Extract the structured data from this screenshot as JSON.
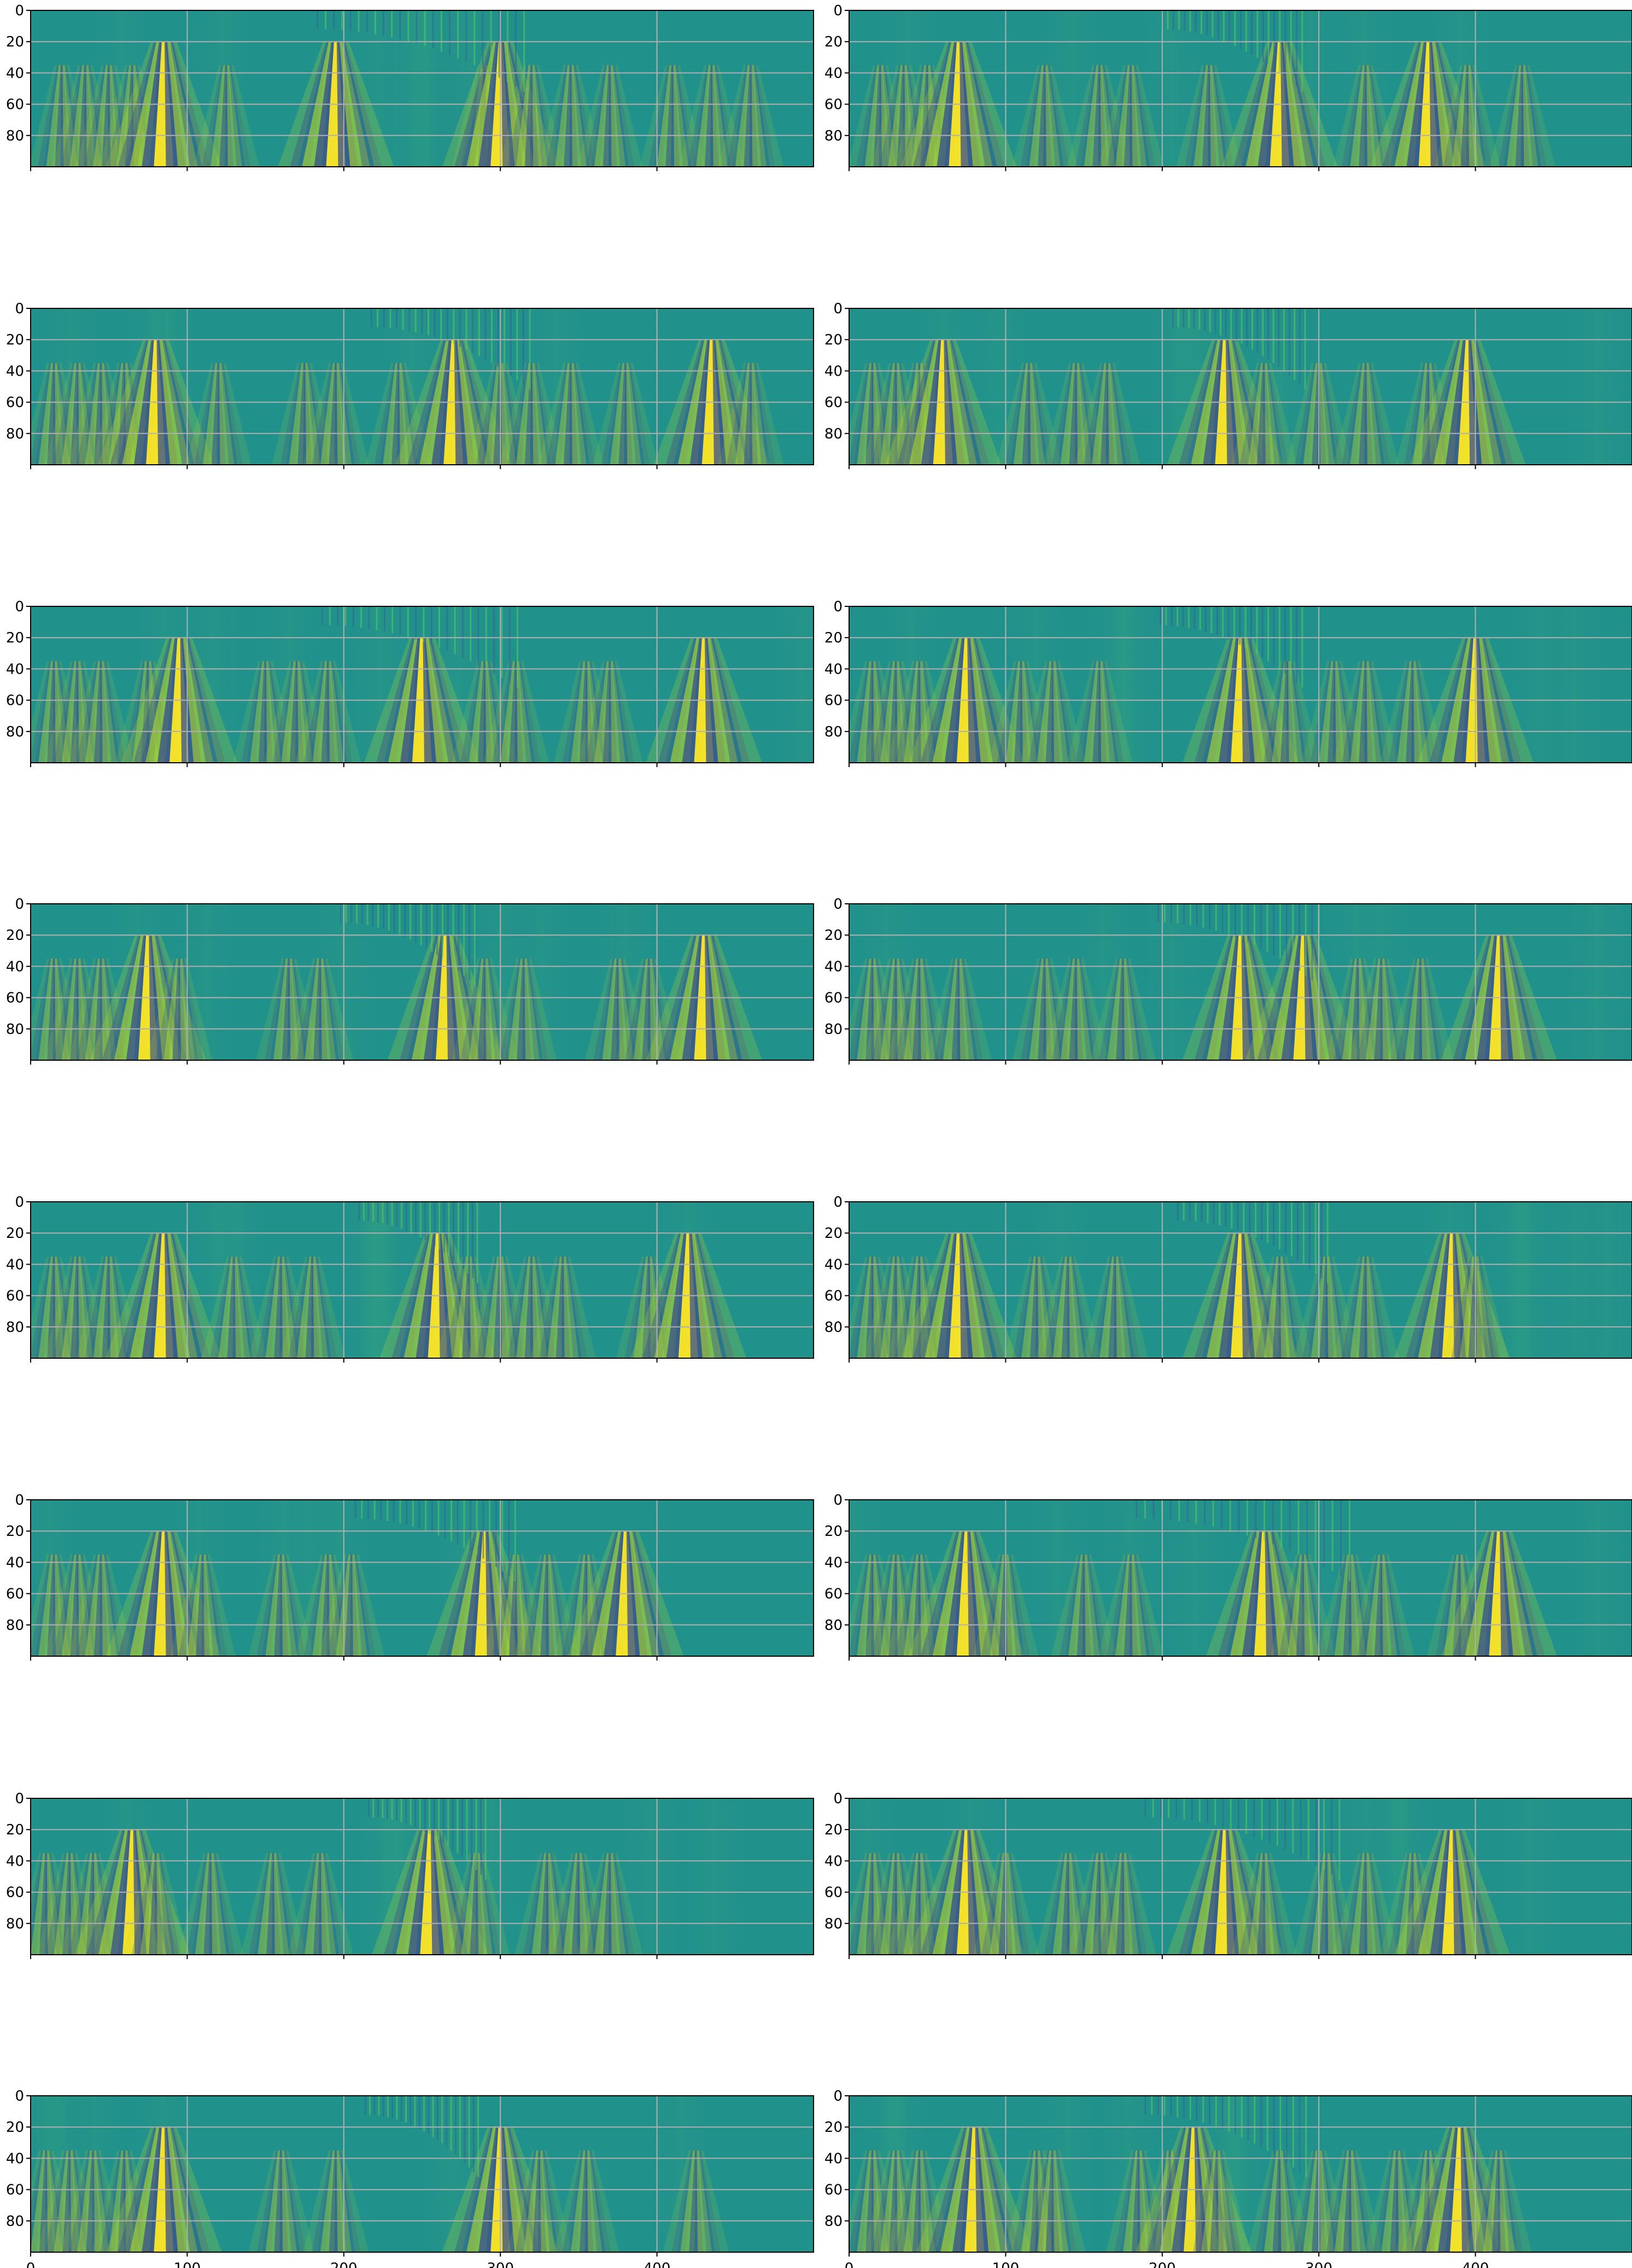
{
  "chart_data": {
    "type": "heatmap",
    "layout": {
      "rows": 8,
      "cols": 2,
      "sharex": true
    },
    "colormap": "viridis",
    "grid": true,
    "x_axis": {
      "range": [
        0,
        500
      ],
      "ticks": [
        0,
        100,
        200,
        300,
        400
      ],
      "tick_labels": [
        "0",
        "100",
        "200",
        "300",
        "400"
      ],
      "labels_on_bottom_row_only": true
    },
    "y_axis": {
      "range": [
        0,
        100
      ],
      "inverted": true,
      "ticks": [
        0,
        20,
        40,
        60,
        80
      ],
      "tick_labels": [
        "0",
        "20",
        "40",
        "60",
        "80"
      ]
    },
    "panels": [
      {
        "row": 1,
        "col": 1,
        "wavelet_centers": [
          20,
          35,
          50,
          65,
          85,
          125,
          195,
          290,
          300,
          320,
          345,
          370,
          410,
          435,
          460
        ],
        "strongest": [
          85,
          195,
          300
        ]
      },
      {
        "row": 1,
        "col": 2,
        "wavelet_centers": [
          20,
          35,
          50,
          70,
          125,
          160,
          180,
          230,
          275,
          330,
          370,
          395,
          430
        ],
        "strongest": [
          70,
          275,
          370
        ]
      },
      {
        "row": 2,
        "col": 1,
        "wavelet_centers": [
          15,
          30,
          45,
          60,
          80,
          120,
          175,
          195,
          235,
          270,
          300,
          320,
          345,
          380,
          435,
          460
        ],
        "strongest": [
          80,
          270,
          435
        ]
      },
      {
        "row": 2,
        "col": 2,
        "wavelet_centers": [
          15,
          30,
          45,
          60,
          115,
          145,
          165,
          240,
          265,
          300,
          330,
          370,
          395
        ],
        "strongest": [
          60,
          240,
          395
        ]
      },
      {
        "row": 3,
        "col": 1,
        "wavelet_centers": [
          15,
          30,
          45,
          75,
          95,
          150,
          170,
          190,
          250,
          290,
          310,
          355,
          370,
          430
        ],
        "strongest": [
          95,
          250,
          430
        ]
      },
      {
        "row": 3,
        "col": 2,
        "wavelet_centers": [
          15,
          30,
          45,
          75,
          110,
          130,
          160,
          250,
          280,
          310,
          330,
          360,
          400
        ],
        "strongest": [
          75,
          250,
          400
        ]
      },
      {
        "row": 4,
        "col": 1,
        "wavelet_centers": [
          15,
          30,
          45,
          75,
          95,
          165,
          185,
          265,
          290,
          315,
          375,
          395,
          430
        ],
        "strongest": [
          75,
          265,
          430
        ]
      },
      {
        "row": 4,
        "col": 2,
        "wavelet_centers": [
          15,
          30,
          45,
          70,
          125,
          145,
          175,
          250,
          290,
          325,
          340,
          365,
          415
        ],
        "strongest": [
          250,
          290,
          415
        ]
      },
      {
        "row": 5,
        "col": 1,
        "wavelet_centers": [
          15,
          30,
          50,
          85,
          130,
          160,
          180,
          260,
          280,
          300,
          320,
          340,
          395,
          420
        ],
        "strongest": [
          85,
          260,
          420
        ]
      },
      {
        "row": 5,
        "col": 2,
        "wavelet_centers": [
          15,
          30,
          45,
          70,
          120,
          140,
          170,
          250,
          275,
          305,
          330,
          385,
          400
        ],
        "strongest": [
          70,
          250,
          385
        ]
      },
      {
        "row": 6,
        "col": 1,
        "wavelet_centers": [
          15,
          30,
          45,
          85,
          110,
          160,
          190,
          205,
          290,
          310,
          330,
          355,
          380
        ],
        "strongest": [
          85,
          290,
          380
        ]
      },
      {
        "row": 6,
        "col": 2,
        "wavelet_centers": [
          15,
          30,
          45,
          75,
          100,
          150,
          180,
          265,
          290,
          320,
          340,
          390,
          415
        ],
        "strongest": [
          75,
          265,
          415
        ]
      },
      {
        "row": 7,
        "col": 1,
        "wavelet_centers": [
          10,
          25,
          40,
          65,
          80,
          115,
          155,
          185,
          255,
          285,
          330,
          350,
          370
        ],
        "strongest": [
          65,
          255
        ]
      },
      {
        "row": 7,
        "col": 2,
        "wavelet_centers": [
          15,
          30,
          45,
          75,
          100,
          140,
          160,
          175,
          240,
          265,
          305,
          330,
          360,
          385
        ],
        "strongest": [
          75,
          240,
          385
        ]
      },
      {
        "row": 8,
        "col": 1,
        "wavelet_centers": [
          10,
          25,
          40,
          60,
          85,
          160,
          195,
          300,
          325,
          355,
          425
        ],
        "strongest": [
          85,
          300
        ]
      },
      {
        "row": 8,
        "col": 2,
        "wavelet_centers": [
          15,
          30,
          45,
          80,
          120,
          130,
          185,
          205,
          220,
          235,
          275,
          300,
          320,
          350,
          370,
          390,
          415
        ],
        "strongest": [
          80,
          220,
          390
        ]
      }
    ]
  }
}
